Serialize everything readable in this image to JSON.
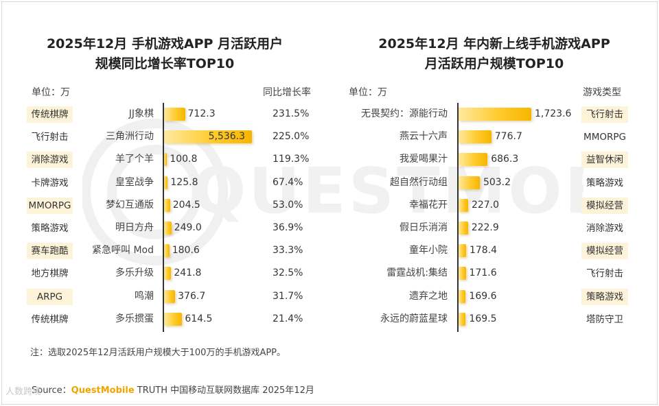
{
  "colors": {
    "accent": "#f7b500",
    "shade": "#fdf3d9",
    "axis": "#333333"
  },
  "watermark": "QUESTMOBILE",
  "chart_data": [
    {
      "type": "bar",
      "title_line1": "2025年12月 手机游戏APP 月活跃用户",
      "title_line2": "规模同比增长率TOP10",
      "unit_label": "单位：万",
      "growth_header": "同比增长率",
      "rows": [
        {
          "genre": "传统棋牌",
          "name": "JJ象棋",
          "value": 712.3,
          "value_label": "712.3",
          "growth": "231.5%"
        },
        {
          "genre": "飞行射击",
          "name": "三角洲行动",
          "value": 5536.3,
          "value_label": "5,536.3",
          "growth": "225.0%"
        },
        {
          "genre": "消除游戏",
          "name": "羊了个羊",
          "value": 100.8,
          "value_label": "100.8",
          "growth": "119.3%"
        },
        {
          "genre": "卡牌游戏",
          "name": "皇室战争",
          "value": 125.8,
          "value_label": "125.8",
          "growth": "67.4%"
        },
        {
          "genre": "MMORPG",
          "name": "梦幻互通版",
          "value": 204.5,
          "value_label": "204.5",
          "growth": "53.0%"
        },
        {
          "genre": "策略游戏",
          "name": "明日方舟",
          "value": 249.0,
          "value_label": "249.0",
          "growth": "36.9%"
        },
        {
          "genre": "赛车跑酷",
          "name": "紧急呼叫 Mod",
          "value": 180.6,
          "value_label": "180.6",
          "growth": "33.3%"
        },
        {
          "genre": "地方棋牌",
          "name": "多乐升级",
          "value": 241.8,
          "value_label": "241.8",
          "growth": "32.5%"
        },
        {
          "genre": "ARPG",
          "name": "鸣潮",
          "value": 376.7,
          "value_label": "376.7",
          "growth": "31.7%"
        },
        {
          "genre": "传统棋牌",
          "name": "多乐掼蛋",
          "value": 614.5,
          "value_label": "614.5",
          "growth": "21.4%"
        }
      ]
    },
    {
      "type": "bar",
      "title_line1": "2025年12月 年内新上线手机游戏APP",
      "title_line2": "月活跃用户规模TOP10",
      "unit_label": "单位：万",
      "genre_header": "游戏类型",
      "rows": [
        {
          "name": "无畏契约：源能行动",
          "value": 1723.6,
          "value_label": "1,723.6",
          "genre": "飞行射击"
        },
        {
          "name": "燕云十六声",
          "value": 776.7,
          "value_label": "776.7",
          "genre": "MMORPG"
        },
        {
          "name": "我爱喝果汁",
          "value": 686.3,
          "value_label": "686.3",
          "genre": "益智休闲"
        },
        {
          "name": "超自然行动组",
          "value": 503.2,
          "value_label": "503.2",
          "genre": "策略游戏"
        },
        {
          "name": "幸福花开",
          "value": 227.0,
          "value_label": "227.0",
          "genre": "模拟经营"
        },
        {
          "name": "假日乐消消",
          "value": 222.9,
          "value_label": "222.9",
          "genre": "消除游戏"
        },
        {
          "name": "童年小院",
          "value": 178.4,
          "value_label": "178.4",
          "genre": "模拟经营"
        },
        {
          "name": "雷霆战机:集结",
          "value": 171.6,
          "value_label": "171.6",
          "genre": "飞行射击"
        },
        {
          "name": "遗弃之地",
          "value": 169.6,
          "value_label": "169.6",
          "genre": "策略游戏"
        },
        {
          "name": "永远的蔚蓝星球",
          "value": 169.5,
          "value_label": "169.5",
          "genre": "塔防守卫"
        }
      ]
    }
  ],
  "footer": {
    "note": "注：选取2025年12月活跃用户规模大于100万的手机游戏APP。",
    "source_prefix": "Source：",
    "source_brand": "QuestMobile",
    "source_rest": " TRUTH 中国移动互联网数据库 2025年12月",
    "corner_logo": "人数跨境"
  }
}
